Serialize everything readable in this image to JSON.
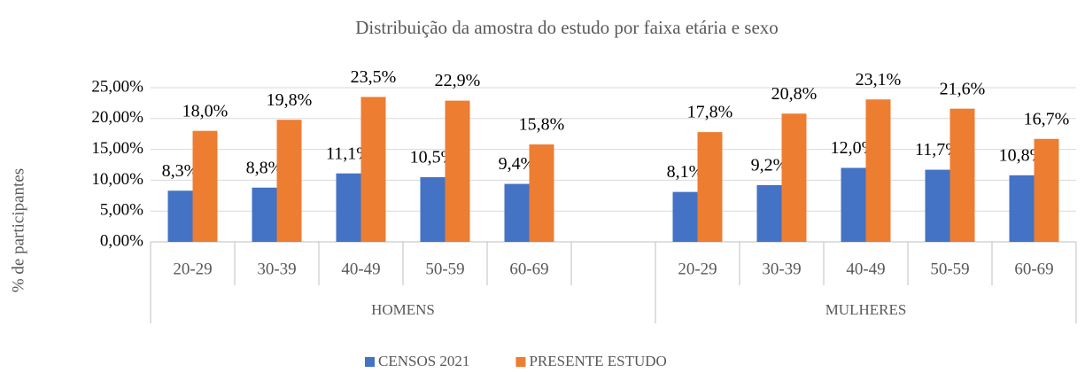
{
  "chart_data": {
    "type": "bar",
    "title": "Distribuição da amostra do estudo por faixa etária e sexo",
    "y_label": "% de participantes",
    "categories": [
      "20-29",
      "30-39",
      "40-49",
      "50-59",
      "60-69",
      null,
      "20-29",
      "30-39",
      "40-49",
      "50-59",
      "60-69"
    ],
    "groups": [
      "HOMENS",
      "MULHERES"
    ],
    "series": [
      {
        "name": "CENSOS 2021",
        "color": "#4472c4",
        "values": [
          8.3,
          8.8,
          11.1,
          10.5,
          9.4,
          null,
          8.1,
          9.2,
          12.0,
          11.7,
          10.8
        ],
        "value_labels": [
          "8,3%",
          "8,8%",
          "11,1%",
          "10,5%",
          "9,4%",
          null,
          "8,1%",
          "9,2%",
          "12,0%",
          "11,7%",
          "10,8%"
        ]
      },
      {
        "name": "PRESENTE ESTUDO",
        "color": "#ed7d31",
        "values": [
          18.0,
          19.8,
          23.5,
          22.9,
          15.8,
          null,
          17.8,
          20.8,
          23.1,
          21.6,
          16.7
        ],
        "value_labels": [
          "18,0%",
          "19,8%",
          "23,5%",
          "22,9%",
          "15,8%",
          null,
          "17,8%",
          "20,8%",
          "23,1%",
          "21,6%",
          "16,7%"
        ]
      }
    ],
    "ylim": [
      0,
      25
    ],
    "yticks": [
      {
        "value": 0,
        "label": "0,00%"
      },
      {
        "value": 5,
        "label": "5,00%"
      },
      {
        "value": 10,
        "label": "10,00%"
      },
      {
        "value": 15,
        "label": "15,00%"
      },
      {
        "value": 20,
        "label": "20,00%"
      },
      {
        "value": 25,
        "label": "25,00%"
      }
    ],
    "grid": true,
    "legend": "bottom"
  }
}
